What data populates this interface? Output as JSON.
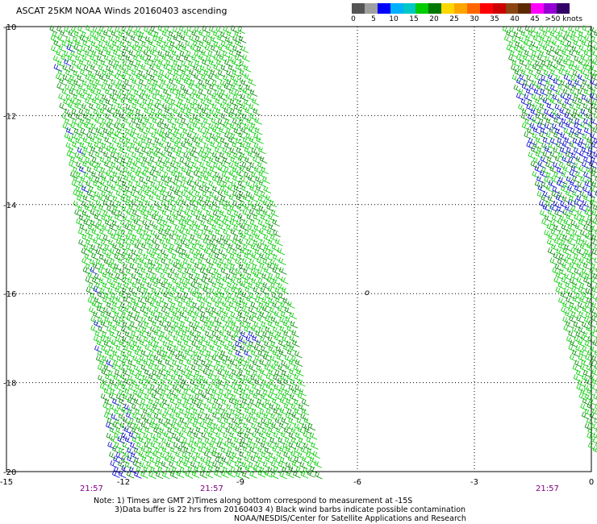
{
  "title": "ASCAT 25KM NOAA Winds 20160403 ascending",
  "legend": {
    "colors": [
      "#555555",
      "#a0a0a0",
      "#0000ff",
      "#00b0ff",
      "#00c8c8",
      "#00cc00",
      "#007700",
      "#ffd700",
      "#ffa500",
      "#ff6600",
      "#ff0000",
      "#cc0000",
      "#8b4513",
      "#5c2a00",
      "#ff00ff",
      "#9400d3",
      "#330066"
    ],
    "labels": [
      "0",
      "5",
      "10",
      "15",
      "20",
      "25",
      "30",
      "35",
      "40",
      "45",
      ">50 knots"
    ]
  },
  "axes": {
    "x_ticks": [
      "-15",
      "-12",
      "-9",
      "-6",
      "-3",
      "0"
    ],
    "y_ticks": [
      "-10",
      "-12",
      "-14",
      "-16",
      "-18",
      "-20"
    ],
    "xlim": [
      -15,
      0
    ],
    "ylim": [
      -20,
      -10
    ]
  },
  "times": [
    "21:57",
    "21:57",
    "21:57"
  ],
  "notes": [
    "Note: 1) Times are GMT 2)Times along bottom correspond to measurement at -15S",
    "3)Data buffer is 22 hrs from 20160403 4) Black wind barbs indicate possible contamination",
    "NOAA/NESDIS/Center for Satellite Applications and Research"
  ],
  "island_marker": "o",
  "colors": {
    "barb_main": "#00cc00",
    "barb_dark": "#008800",
    "barb_blue": "#0000cc",
    "grid": "#000000",
    "time_text": "#800080"
  }
}
